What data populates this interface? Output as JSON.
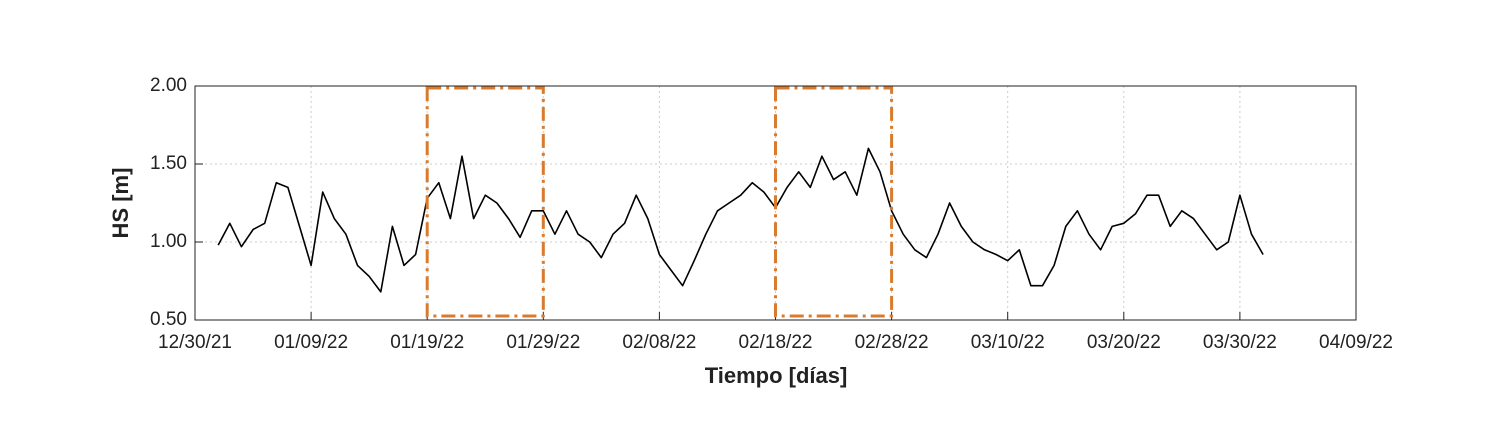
{
  "chart_data": {
    "type": "line",
    "xlabel": "Tiempo [días]",
    "ylabel": "HS [m]",
    "color": "#000000",
    "x": [
      "2022-01-01",
      "2022-01-02",
      "2022-01-03",
      "2022-01-04",
      "2022-01-05",
      "2022-01-06",
      "2022-01-07",
      "2022-01-08",
      "2022-01-09",
      "2022-01-10",
      "2022-01-11",
      "2022-01-12",
      "2022-01-13",
      "2022-01-14",
      "2022-01-15",
      "2022-01-16",
      "2022-01-17",
      "2022-01-18",
      "2022-01-19",
      "2022-01-20",
      "2022-01-21",
      "2022-01-22",
      "2022-01-23",
      "2022-01-24",
      "2022-01-25",
      "2022-01-26",
      "2022-01-27",
      "2022-01-28",
      "2022-01-29",
      "2022-01-30",
      "2022-01-31",
      "2022-02-01",
      "2022-02-02",
      "2022-02-03",
      "2022-02-04",
      "2022-02-05",
      "2022-02-06",
      "2022-02-07",
      "2022-02-08",
      "2022-02-09",
      "2022-02-10",
      "2022-02-11",
      "2022-02-12",
      "2022-02-13",
      "2022-02-14",
      "2022-02-15",
      "2022-02-16",
      "2022-02-17",
      "2022-02-18",
      "2022-02-19",
      "2022-02-20",
      "2022-02-21",
      "2022-02-22",
      "2022-02-23",
      "2022-02-24",
      "2022-02-25",
      "2022-02-26",
      "2022-02-27",
      "2022-02-28",
      "2022-03-01",
      "2022-03-02",
      "2022-03-03",
      "2022-03-04",
      "2022-03-05",
      "2022-03-06",
      "2022-03-07",
      "2022-03-08",
      "2022-03-09",
      "2022-03-10",
      "2022-03-11",
      "2022-03-12",
      "2022-03-13",
      "2022-03-14",
      "2022-03-15",
      "2022-03-16",
      "2022-03-17",
      "2022-03-18",
      "2022-03-19",
      "2022-03-20",
      "2022-03-21",
      "2022-03-22",
      "2022-03-23",
      "2022-03-24",
      "2022-03-25",
      "2022-03-26",
      "2022-03-27",
      "2022-03-28",
      "2022-03-29",
      "2022-03-30",
      "2022-03-31",
      "2022-04-01"
    ],
    "values": [
      0.98,
      1.12,
      0.97,
      1.08,
      1.12,
      1.38,
      1.35,
      1.1,
      0.85,
      1.32,
      1.15,
      1.05,
      0.85,
      0.78,
      0.68,
      1.1,
      0.85,
      0.92,
      1.28,
      1.38,
      1.15,
      1.55,
      1.15,
      1.3,
      1.25,
      1.15,
      1.03,
      1.2,
      1.2,
      1.05,
      1.2,
      1.05,
      1.0,
      0.9,
      1.05,
      1.12,
      1.3,
      1.15,
      0.92,
      0.82,
      0.72,
      0.88,
      1.05,
      1.2,
      1.25,
      1.3,
      1.38,
      1.32,
      1.22,
      1.35,
      1.45,
      1.35,
      1.55,
      1.4,
      1.45,
      1.3,
      1.6,
      1.45,
      1.2,
      1.05,
      0.95,
      0.9,
      1.05,
      1.25,
      1.1,
      1.0,
      0.95,
      0.92,
      0.88,
      0.95,
      0.72,
      0.72,
      0.85,
      1.1,
      1.2,
      1.05,
      0.95,
      1.1,
      1.12,
      1.18,
      1.3,
      1.3,
      1.1,
      1.2,
      1.15,
      1.05,
      0.95,
      1.0,
      1.3,
      1.05,
      0.92
    ],
    "xlim": [
      "2021-12-30",
      "2022-04-09"
    ],
    "xticks": [
      {
        "value": "2021-12-30",
        "label": "12/30/21"
      },
      {
        "value": "2022-01-09",
        "label": "01/09/22"
      },
      {
        "value": "2022-01-19",
        "label": "01/19/22"
      },
      {
        "value": "2022-01-29",
        "label": "01/29/22"
      },
      {
        "value": "2022-02-08",
        "label": "02/08/22"
      },
      {
        "value": "2022-02-18",
        "label": "02/18/22"
      },
      {
        "value": "2022-02-28",
        "label": "02/28/22"
      },
      {
        "value": "2022-03-10",
        "label": "03/10/22"
      },
      {
        "value": "2022-03-20",
        "label": "03/20/22"
      },
      {
        "value": "2022-03-30",
        "label": "03/30/22"
      },
      {
        "value": "2022-04-09",
        "label": "04/09/22"
      }
    ],
    "ylim": [
      0.5,
      2
    ],
    "yticks": [
      {
        "value": 0.5,
        "label": "0.50"
      },
      {
        "value": 1,
        "label": "1.00"
      },
      {
        "value": 1.5,
        "label": "1.50"
      },
      {
        "value": 2,
        "label": "2.00"
      }
    ],
    "grid": true,
    "highlights": [
      {
        "start": "2022-01-19",
        "end": "2022-01-29",
        "color": "#d97b2e"
      },
      {
        "start": "2022-02-18",
        "end": "2022-02-28",
        "color": "#d97b2e"
      }
    ]
  }
}
